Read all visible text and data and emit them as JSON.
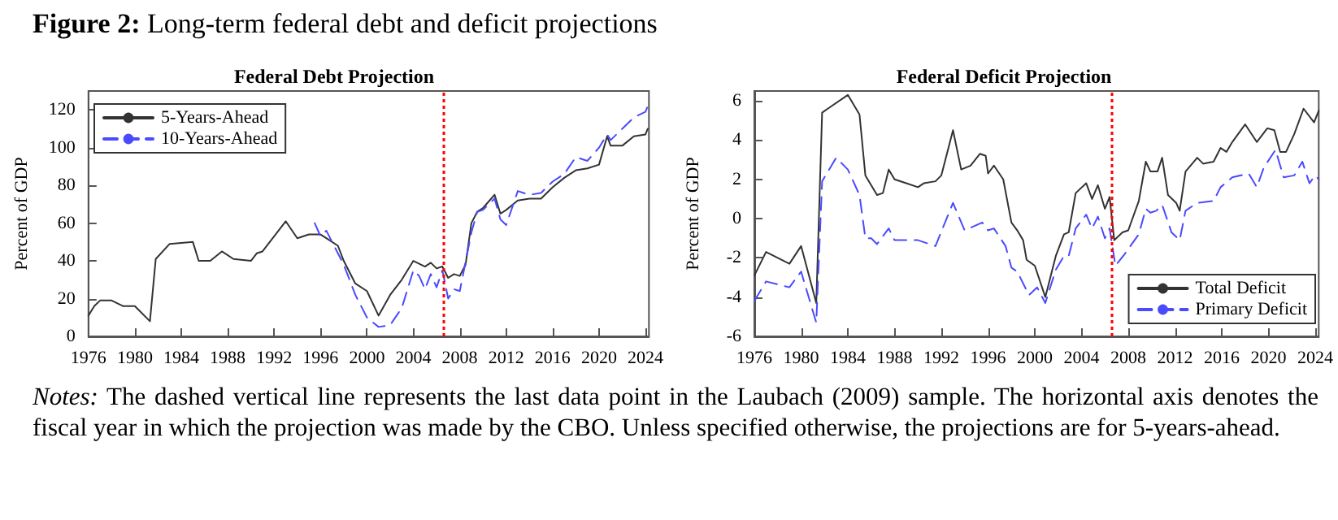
{
  "chart_data": [
    {
      "type": "line",
      "title": "Federal Debt Projection",
      "ylabel": "Percent of GDP",
      "annotations": [
        "Figure 2: Long-term federal debt and deficit projections"
      ],
      "xlim": [
        1976,
        2024.3
      ],
      "xticks": [
        1976,
        1980,
        1984,
        1988,
        1992,
        1996,
        2000,
        2004,
        2008,
        2012,
        2016,
        2020,
        2024
      ],
      "ylim": [
        0,
        130
      ],
      "yticks": [
        0,
        20,
        40,
        60,
        80,
        100,
        120
      ],
      "grid": false,
      "legend": "top left",
      "ref_lines": [
        {
          "axis": "x",
          "value": 2006.6,
          "color": "#ff0000",
          "line_style": "dotted"
        }
      ],
      "series": [
        {
          "name": "5-Years-Ahead",
          "color": "#333333",
          "line_style": "solid",
          "x": [
            1976,
            1976.5,
            1977,
            1978,
            1979,
            1980,
            1981.3,
            1981.8,
            1983,
            1985,
            1985.5,
            1986.5,
            1987.5,
            1988.5,
            1990,
            1990.5,
            1991,
            1992,
            1993,
            1994,
            1995,
            1996,
            1996.5,
            1997.5,
            1998,
            1998.5,
            1999,
            2000,
            2001,
            2002,
            2003,
            2004,
            2005,
            2005.5,
            2006,
            2006.5,
            2007,
            2007.5,
            2008,
            2008.5,
            2009,
            2009.5,
            2010,
            2011,
            2011.5,
            2012,
            2013,
            2014,
            2015,
            2016,
            2017,
            2018,
            2019,
            2020,
            2020.7,
            2021,
            2022,
            2023,
            2024,
            2024.2
          ],
          "values": [
            11,
            16,
            19,
            19,
            16,
            16,
            8,
            41,
            49,
            50,
            40,
            40,
            45,
            41,
            40,
            44,
            45,
            53,
            61,
            52,
            54,
            54,
            52,
            48,
            40,
            34,
            28,
            24,
            11,
            22,
            30,
            40,
            37,
            39,
            36,
            37,
            31,
            33,
            32,
            38,
            60,
            66,
            68,
            75,
            65,
            67,
            72,
            73,
            73,
            79,
            84,
            88,
            89,
            91,
            106,
            101,
            101,
            106,
            107,
            110
          ]
        },
        {
          "name": "10-Years-Ahead",
          "color": "#4a4aff",
          "line_style": "dashed",
          "x": [
            1995.5,
            1996,
            1996.5,
            1997,
            1998,
            1999,
            2000,
            2001,
            2002,
            2003,
            2004,
            2004.5,
            2005,
            2005.5,
            2006,
            2006.5,
            2007,
            2007.5,
            2008,
            2009,
            2009.5,
            2010,
            2011,
            2011.5,
            2012,
            2013,
            2014,
            2015,
            2016,
            2017,
            2018,
            2019,
            2020,
            2020.7,
            2021,
            2022,
            2023,
            2024,
            2024.2
          ],
          "values": [
            60,
            53,
            56,
            50,
            38,
            22,
            10,
            5,
            6,
            15,
            35,
            32,
            25,
            33,
            26,
            35,
            20,
            25,
            24,
            55,
            66,
            67,
            73,
            62,
            59,
            77,
            75,
            76,
            82,
            86,
            95,
            93,
            100,
            107,
            104,
            110,
            116,
            119,
            122
          ]
        }
      ]
    },
    {
      "type": "line",
      "title": "Federal Deficit Projection",
      "ylabel": "Percent of GDP",
      "annotations": [
        "Notes: The dashed vertical line represents the last data point in the Laubach (2009) sample. The horizontal axis denotes the fiscal year in which the projection was made by the CBO. Unless specified otherwise, the projections are for 5-years-ahead."
      ],
      "xlim": [
        1976,
        2024.3
      ],
      "xticks": [
        1976,
        1980,
        1984,
        1988,
        1992,
        1996,
        2000,
        2004,
        2008,
        2012,
        2016,
        2020,
        2024
      ],
      "ylim": [
        -6,
        6.5
      ],
      "yticks": [
        -6,
        -4,
        -2,
        0,
        2,
        4,
        6
      ],
      "grid": false,
      "legend": "bottom right",
      "ref_lines": [
        {
          "axis": "x",
          "value": 2006.6,
          "color": "#ff0000",
          "line_style": "dotted"
        }
      ],
      "series": [
        {
          "name": "Total Deficit",
          "color": "#333333",
          "line_style": "solid",
          "x": [
            1976,
            1977,
            1979,
            1980,
            1981.3,
            1981.8,
            1984,
            1985,
            1985.5,
            1986.5,
            1987,
            1987.5,
            1988,
            1989,
            1990,
            1990.5,
            1991.5,
            1992,
            1993,
            1993.7,
            1994.5,
            1995.3,
            1995.8,
            1996,
            1996.5,
            1997.3,
            1998,
            1998.5,
            1999,
            1999.3,
            2000,
            2000.9,
            2001.8,
            2002.5,
            2002.9,
            2003.5,
            2004.4,
            2004.9,
            2005.4,
            2006,
            2006.4,
            2006.8,
            2007.5,
            2008,
            2008.9,
            2009.5,
            2009.9,
            2010.5,
            2010.9,
            2011.4,
            2012.1,
            2012.4,
            2012.9,
            2013.9,
            2014.4,
            2015.3,
            2015.9,
            2016.4,
            2016.9,
            2018,
            2019,
            2019.9,
            2020.5,
            2021,
            2021.5,
            2022.2,
            2023,
            2023.9,
            2024.3
          ],
          "values": [
            -2.9,
            -1.7,
            -2.3,
            -1.4,
            -4.3,
            5.4,
            6.3,
            5.3,
            2.2,
            1.2,
            1.3,
            2.5,
            2,
            1.8,
            1.6,
            1.8,
            1.9,
            2.2,
            4.5,
            2.5,
            2.7,
            3.3,
            3.2,
            2.3,
            2.7,
            2,
            -0.2,
            -0.6,
            -1.1,
            -2.1,
            -2.4,
            -4,
            -1.9,
            -0.8,
            -0.7,
            1.3,
            1.8,
            1,
            1.7,
            0.5,
            1.1,
            -1.1,
            -0.7,
            -0.6,
            0.9,
            2.9,
            2.4,
            2.4,
            3.1,
            1.2,
            0.8,
            0.4,
            2.4,
            3.1,
            2.8,
            2.9,
            3.6,
            3.4,
            3.9,
            4.8,
            3.9,
            4.6,
            4.5,
            3.4,
            3.4,
            4.3,
            5.6,
            4.9,
            5.5
          ]
        },
        {
          "name": "Primary Deficit",
          "color": "#4a4aff",
          "line_style": "dashed",
          "x": [
            1976,
            1977,
            1979,
            1980,
            1981.3,
            1981.8,
            1983,
            1984,
            1985,
            1985.5,
            1986,
            1986.5,
            1987.5,
            1988,
            1990,
            1991.5,
            1993,
            1994,
            1995.5,
            1996,
            1996.5,
            1997.5,
            1998,
            1998.5,
            1999.5,
            2000.2,
            2000.9,
            2001.8,
            2002.5,
            2002.9,
            2003.5,
            2004.4,
            2004.9,
            2005.4,
            2006,
            2006.4,
            2006.9,
            2007.7,
            2008.9,
            2009.5,
            2009.9,
            2010.4,
            2010.9,
            2011.7,
            2012.4,
            2012.9,
            2013.9,
            2015.3,
            2015.9,
            2016.9,
            2018.3,
            2019,
            2019.6,
            2020.6,
            2021.3,
            2022.2,
            2022.9,
            2023.5,
            2024,
            2024.3
          ],
          "values": [
            -4.2,
            -3.2,
            -3.5,
            -2.7,
            -5.3,
            1.9,
            3.1,
            2.5,
            1.2,
            -1,
            -1,
            -1.3,
            -0.5,
            -1.1,
            -1.1,
            -1.4,
            0.8,
            -0.6,
            -0.2,
            -0.6,
            -0.5,
            -1.4,
            -2.5,
            -2.7,
            -3.9,
            -3.5,
            -4.3,
            -2.6,
            -1.9,
            -1.9,
            -0.5,
            0.2,
            -0.5,
            0.1,
            -1,
            -0.5,
            -2.4,
            -1.8,
            -0.8,
            0.5,
            0.3,
            0.4,
            0.7,
            -0.7,
            -1.1,
            0.4,
            0.8,
            0.9,
            1.6,
            2.1,
            2.3,
            1.6,
            2.6,
            3.5,
            2.1,
            2.2,
            2.9,
            1.8,
            2.2,
            2
          ]
        }
      ]
    }
  ]
}
